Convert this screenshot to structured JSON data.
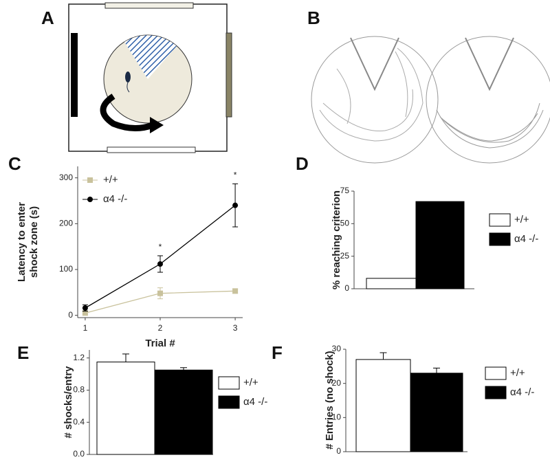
{
  "panel_labels": [
    "A",
    "B"
  ],
  "chart_data": [
    {
      "type": "line",
      "panel": "C",
      "x": [
        1,
        2,
        3
      ],
      "xlim": [
        0.9,
        3.1
      ],
      "xticks": [
        1,
        2,
        3
      ],
      "ylim": [
        -5,
        325
      ],
      "yticks": [
        0,
        100,
        200,
        300
      ],
      "x_label": "Trial #",
      "y_label": [
        "Latency to enter",
        "shock zone (s)"
      ],
      "legend": "upper left",
      "series": [
        {
          "name": "+/+",
          "color": "#c9c29c",
          "marker": "square",
          "values": [
            5,
            48,
            53
          ],
          "errors": [
            3,
            12,
            5
          ]
        },
        {
          "name": "α4 -/-",
          "color": "#000000",
          "marker": "circle",
          "values": [
            16,
            112,
            240
          ],
          "errors": [
            7,
            18,
            47
          ]
        }
      ],
      "annotations": [
        {
          "text": "*",
          "x": 2
        },
        {
          "text": "*",
          "x": 3
        }
      ]
    },
    {
      "type": "bar",
      "panel": "D",
      "categories": [
        null
      ],
      "ylim": [
        0,
        75
      ],
      "yticks": [
        0,
        25,
        50,
        75
      ],
      "y_label": "% reaching criterion",
      "legend": "right",
      "series": [
        {
          "name": "+/+",
          "color": "#ffffff",
          "values": [
            8
          ]
        },
        {
          "name": "α4 -/-",
          "color": "#000000",
          "values": [
            67
          ]
        }
      ]
    },
    {
      "type": "bar",
      "panel": "E",
      "categories": [
        null
      ],
      "ylim": [
        0,
        1.3
      ],
      "yticks": [
        {
          "value": 0,
          "label": "0.0"
        },
        0.4,
        0.8,
        1.2
      ],
      "y_label": "# shocks/entry",
      "legend": "right",
      "series": [
        {
          "name": "+/+",
          "color": "#ffffff",
          "values": [
            1.15
          ],
          "errors": [
            0.1
          ]
        },
        {
          "name": "α4 -/-",
          "color": "#000000",
          "values": [
            1.05
          ],
          "errors": [
            0.03
          ]
        }
      ]
    },
    {
      "type": "bar",
      "panel": "F",
      "categories": [
        null
      ],
      "ylim": [
        0,
        30
      ],
      "yticks": [
        0,
        10,
        20,
        30
      ],
      "y_label": "# Entries (no shock)",
      "legend": "right",
      "series": [
        {
          "name": "+/+",
          "color": "#ffffff",
          "values": [
            27
          ],
          "errors": [
            2
          ]
        },
        {
          "name": "α4 -/-",
          "color": "#000000",
          "values": [
            23
          ],
          "errors": [
            1.5
          ]
        }
      ]
    }
  ]
}
